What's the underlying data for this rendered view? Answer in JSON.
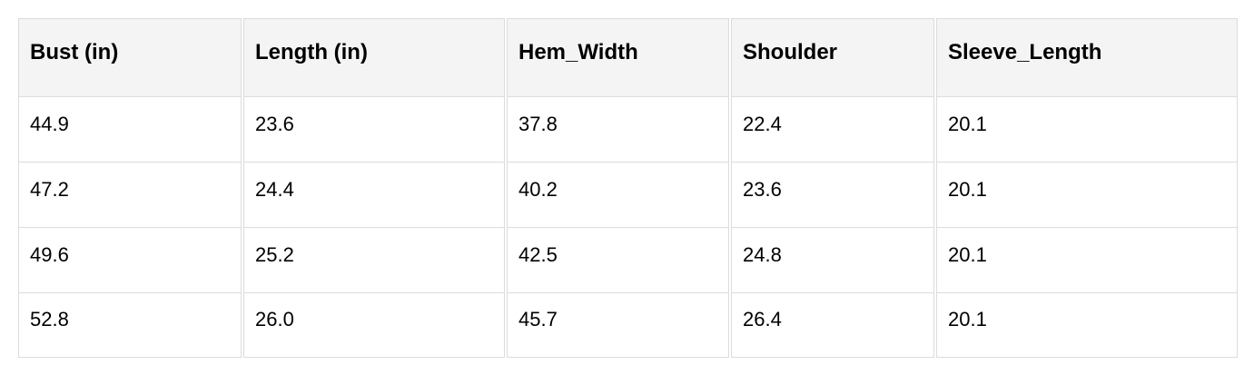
{
  "table": {
    "headers": [
      "Bust (in)",
      "Length (in)",
      "Hem_Width",
      "Shoulder",
      "Sleeve_Length"
    ],
    "rows": [
      [
        "44.9",
        "23.6",
        "37.8",
        "22.4",
        "20.1"
      ],
      [
        "47.2",
        "24.4",
        "40.2",
        "23.6",
        "20.1"
      ],
      [
        "49.6",
        "25.2",
        "42.5",
        "24.8",
        "20.1"
      ],
      [
        "52.8",
        "26.0",
        "45.7",
        "26.4",
        "20.1"
      ]
    ]
  }
}
